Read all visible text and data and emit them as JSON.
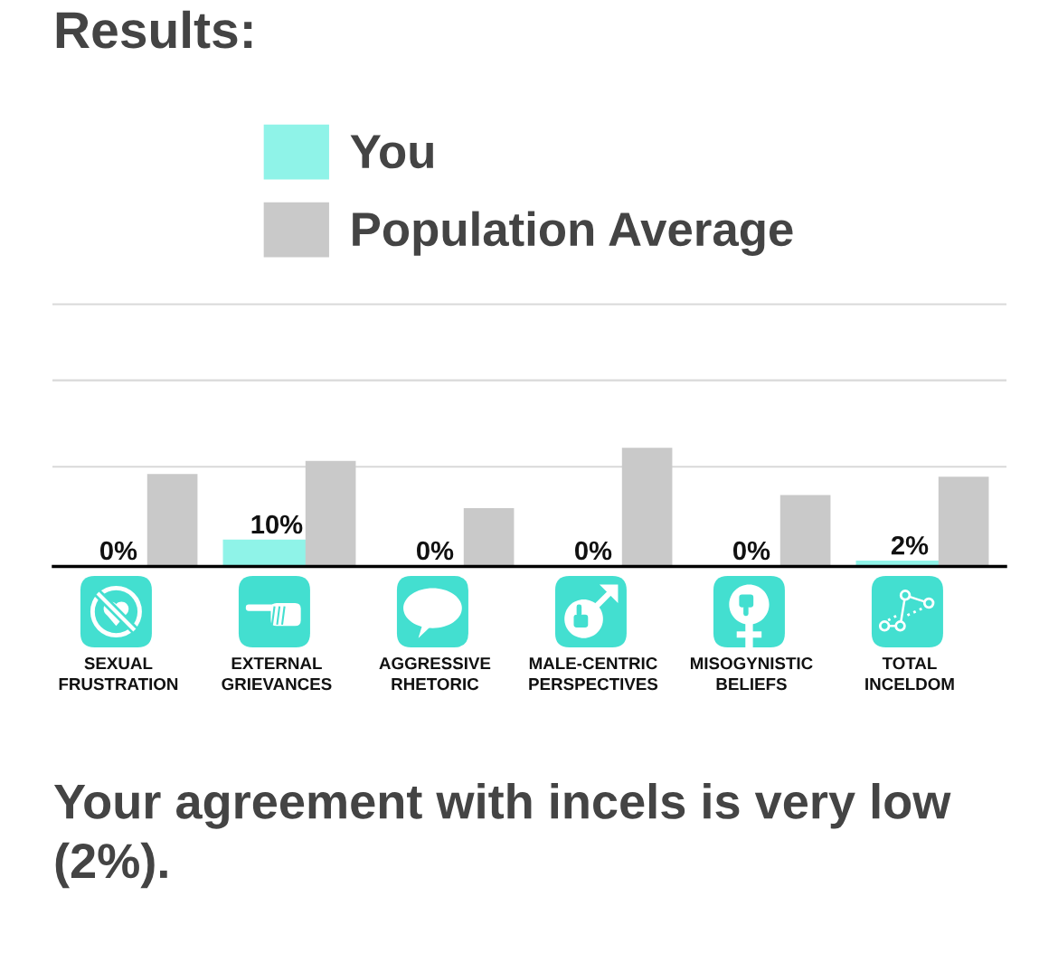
{
  "chart_data": {
    "type": "bar",
    "title": "Results:",
    "categories": [
      "SEXUAL\nFRUSTRATION",
      "EXTERNAL\nGRIEVANCES",
      "AGGRESSIVE\nRHETORIC",
      "MALE-CENTRIC\nPERSPECTIVES",
      "MISOGYNISTIC\nBELIEFS",
      "TOTAL\nINCELDOM"
    ],
    "series": [
      {
        "name": "You",
        "color": "#8ff3e8",
        "values": [
          0,
          10,
          0,
          0,
          0,
          2
        ],
        "value_labels": [
          "0%",
          "10%",
          "0%",
          "0%",
          "0%",
          "2%"
        ]
      },
      {
        "name": "Population Average",
        "color": "#c9c9c9",
        "values": [
          35,
          40,
          22,
          45,
          27,
          34
        ]
      }
    ],
    "ylim": [
      0,
      100
    ],
    "yticks": [
      {
        "value": 38,
        "label": null
      },
      {
        "value": 71,
        "label": null
      },
      {
        "value": 100,
        "label": null
      }
    ],
    "grid": "y",
    "legend": "top",
    "tick_labels": "x",
    "annotations": [
      "Your agreement with incels is very low (2%)."
    ]
  }
}
